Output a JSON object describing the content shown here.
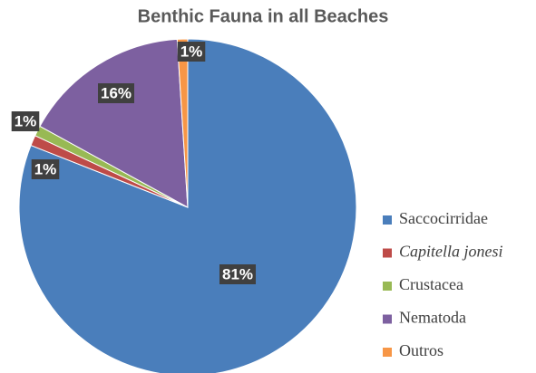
{
  "chart_data": {
    "type": "pie",
    "title": "Benthic Fauna in all Beaches",
    "categories": [
      "Saccocirridae",
      "Capitella jonesi",
      "Crustacea",
      "Nematoda",
      "Outros"
    ],
    "values": [
      81,
      1,
      1,
      16,
      1
    ],
    "value_labels": [
      "81%",
      "1%",
      "1%",
      "16%",
      "1%"
    ],
    "colors": [
      "#4a7ebb",
      "#be4b48",
      "#98b954",
      "#7d60a0",
      "#f79646"
    ],
    "legend": "right"
  }
}
